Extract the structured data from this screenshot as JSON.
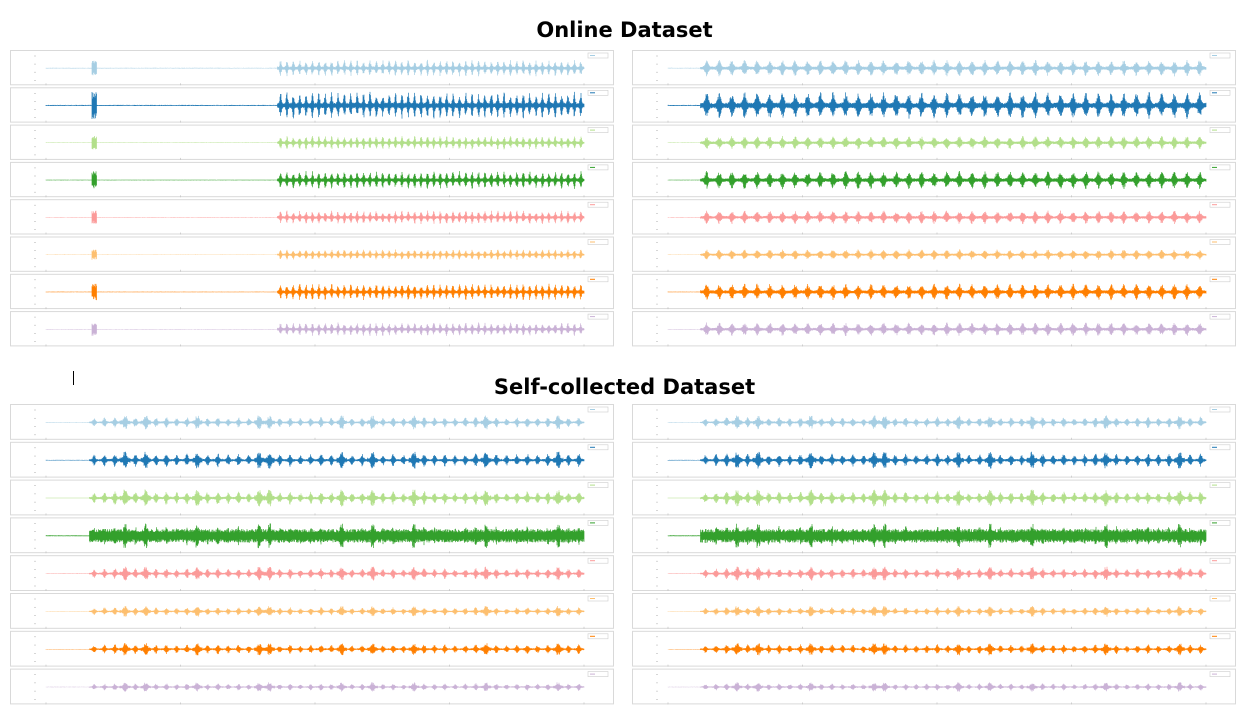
{
  "titles": {
    "online": "Online Dataset",
    "self_collected": "Self-collected Dataset"
  },
  "colors": {
    "channel_1": "#a6cee3",
    "channel_2": "#1f78b4",
    "channel_3": "#b2df8a",
    "channel_4": "#33a02c",
    "channel_5": "#fb9a99",
    "channel_6": "#fdbf6f",
    "channel_7": "#ff7f00",
    "channel_8": "#cab2d6"
  },
  "chart_data": [
    {
      "type": "line",
      "group": "Online Dataset",
      "panel": "left",
      "channels": 8,
      "series_colors": [
        "#a6cee3",
        "#1f78b4",
        "#b2df8a",
        "#33a02c",
        "#fb9a99",
        "#fdbf6f",
        "#ff7f00",
        "#cab2d6"
      ],
      "pattern": "single spike near start, quiet interval, then periodic bursts to end",
      "burst_count": 48
    },
    {
      "type": "line",
      "group": "Online Dataset",
      "panel": "right",
      "channels": 8,
      "series_colors": [
        "#a6cee3",
        "#1f78b4",
        "#b2df8a",
        "#33a02c",
        "#fb9a99",
        "#fdbf6f",
        "#ff7f00",
        "#cab2d6"
      ],
      "pattern": "continuous periodic bursts",
      "burst_count": 40
    },
    {
      "type": "line",
      "group": "Self-collected Dataset",
      "panel": "left",
      "channels": 8,
      "series_colors": [
        "#a6cee3",
        "#1f78b4",
        "#b2df8a",
        "#33a02c",
        "#fb9a99",
        "#fdbf6f",
        "#ff7f00",
        "#cab2d6"
      ],
      "pattern": "irregular bursts with occasional large peaks",
      "burst_count": 48
    },
    {
      "type": "line",
      "group": "Self-collected Dataset",
      "panel": "right",
      "channels": 8,
      "series_colors": [
        "#a6cee3",
        "#1f78b4",
        "#b2df8a",
        "#33a02c",
        "#fb9a99",
        "#fdbf6f",
        "#ff7f00",
        "#cab2d6"
      ],
      "pattern": "irregular bursts with occasional large peaks",
      "burst_count": 48
    }
  ]
}
